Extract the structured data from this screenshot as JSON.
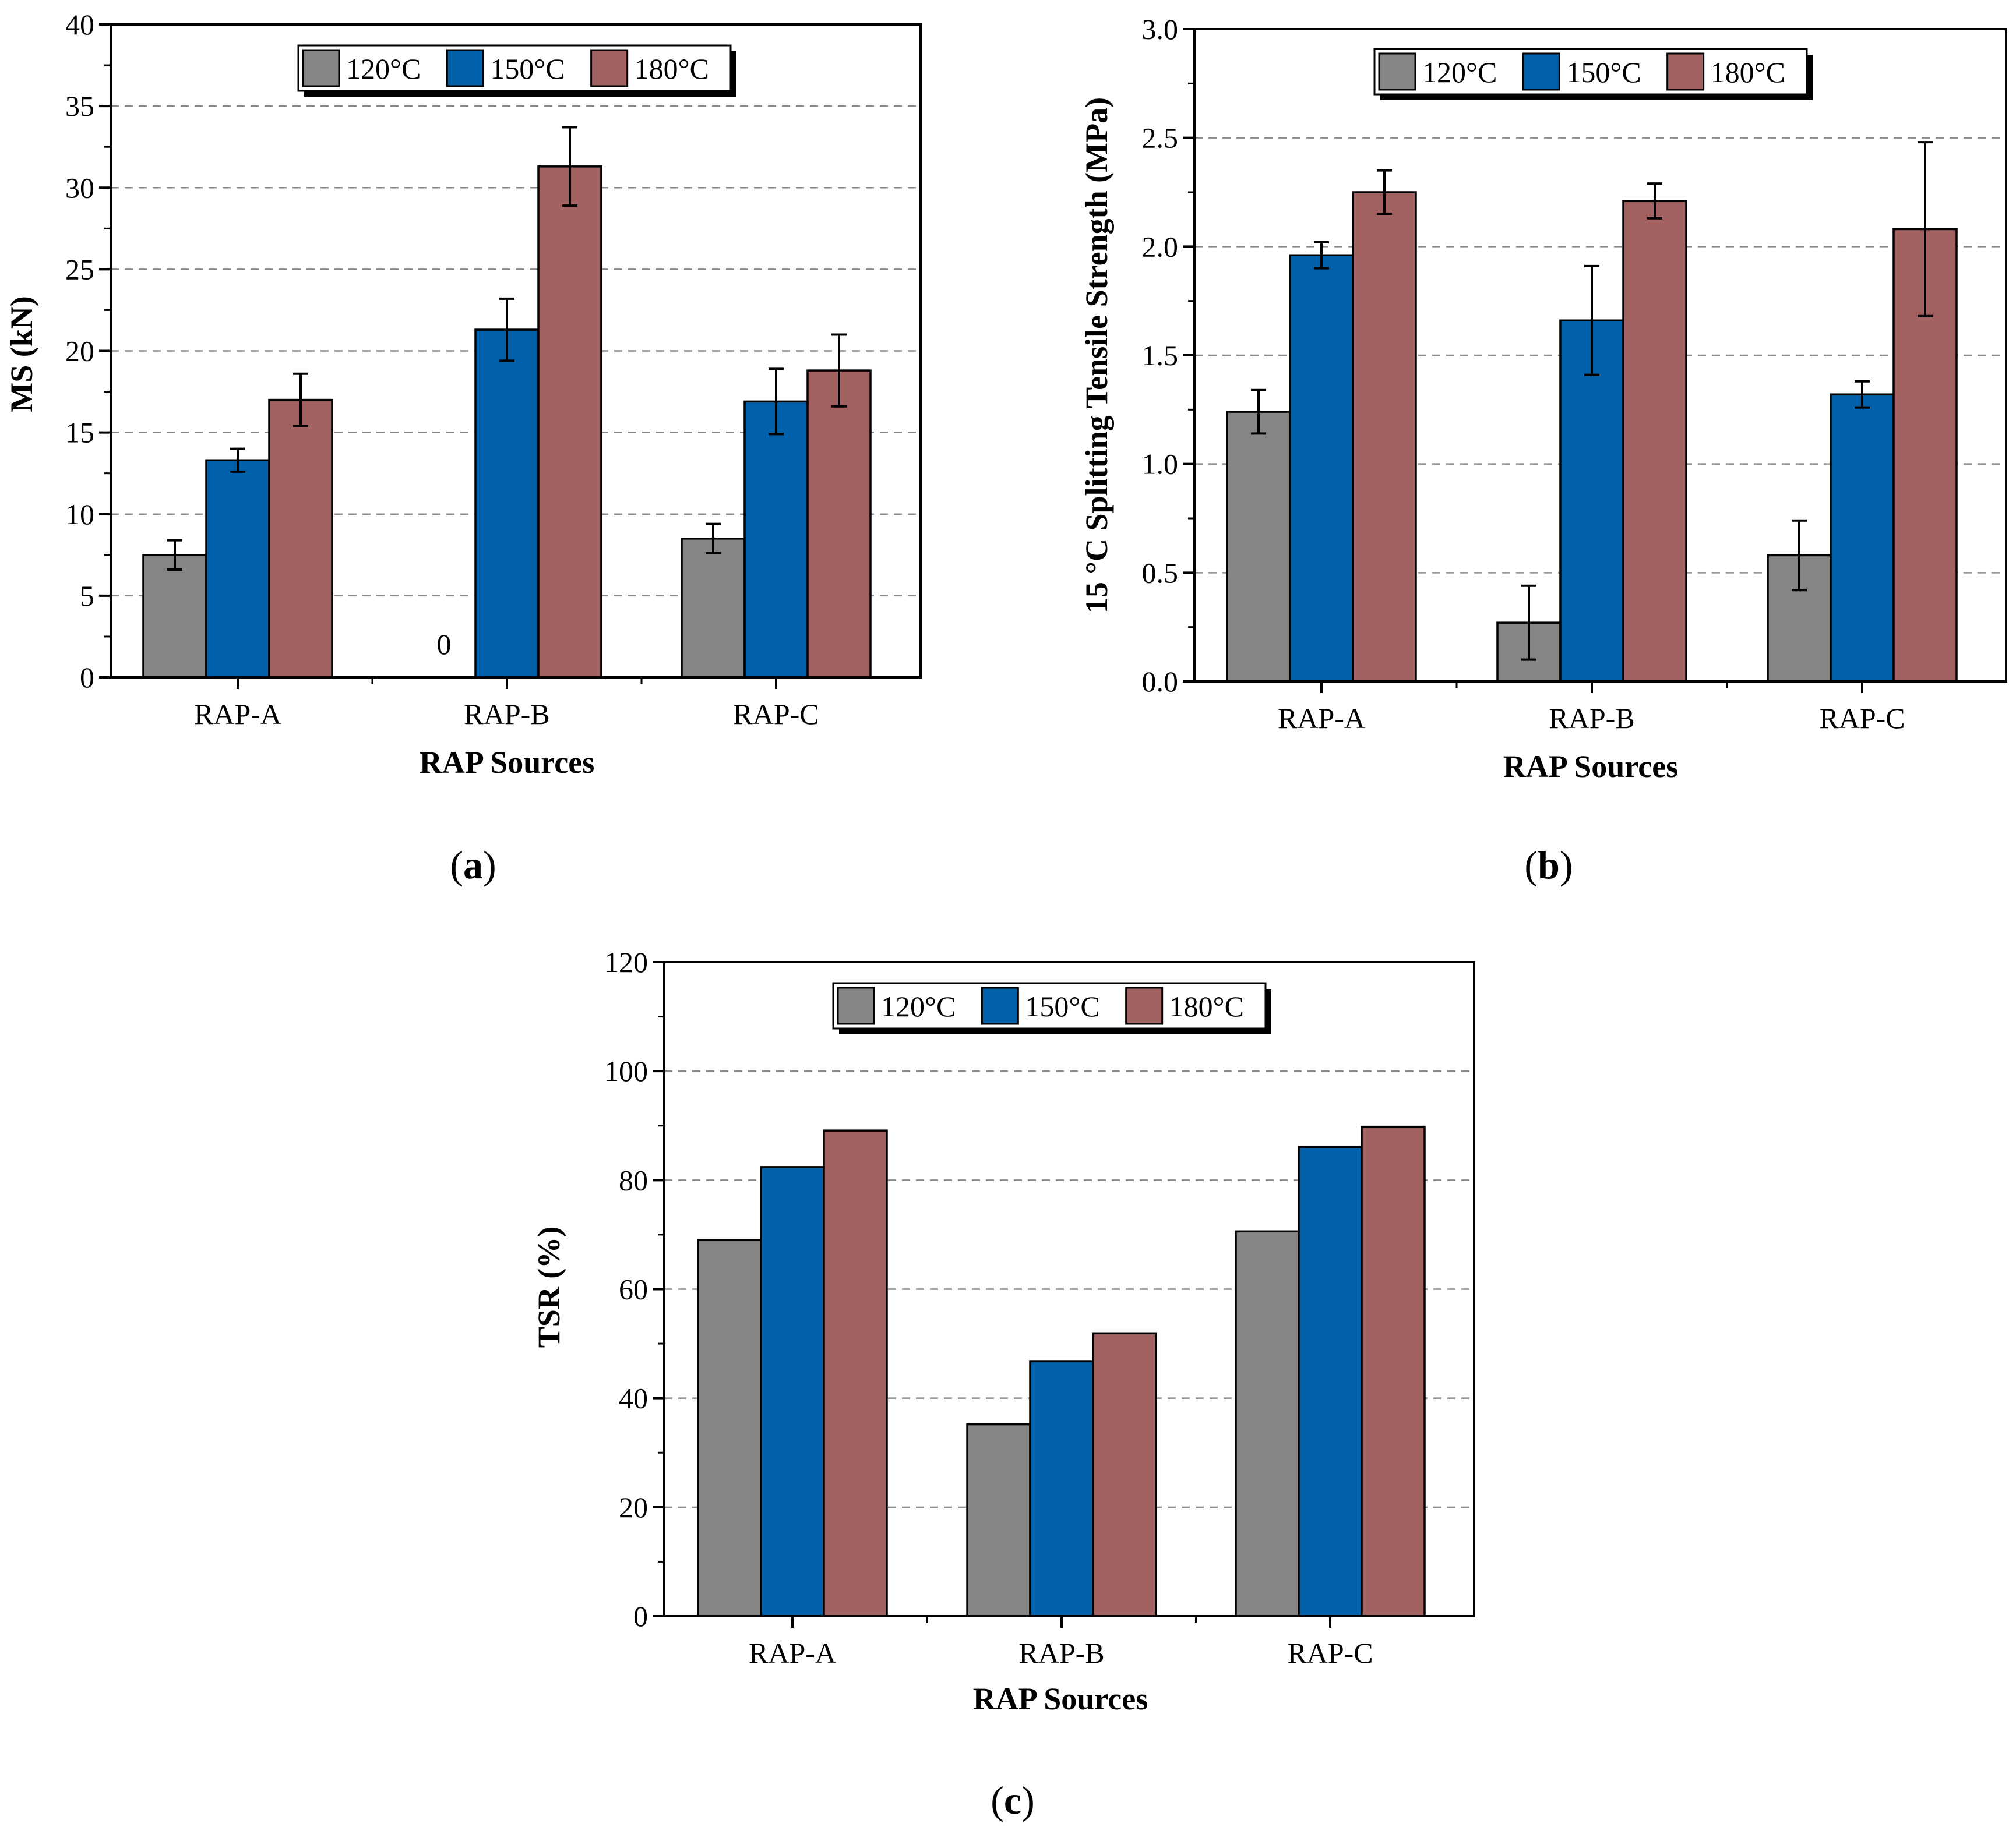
{
  "colors": {
    "s120": "#858585",
    "s150": "#0060aa",
    "s180": "#a36262"
  },
  "chart_data": [
    {
      "type": "bar",
      "panel": "(a)",
      "panel_letter": "a",
      "categories": [
        "RAP-A",
        "RAP-B",
        "RAP-C"
      ],
      "series": [
        {
          "name": "120°C",
          "values": [
            7.5,
            0,
            8.5
          ],
          "errors": [
            0.9,
            null,
            0.9
          ]
        },
        {
          "name": "150°C",
          "values": [
            13.3,
            21.3,
            16.9
          ],
          "errors": [
            0.7,
            1.9,
            2.0
          ]
        },
        {
          "name": "180°C",
          "values": [
            17.0,
            31.3,
            18.8
          ],
          "errors": [
            1.6,
            2.4,
            2.2
          ]
        }
      ],
      "ylim": [
        0,
        40
      ],
      "yticks": [
        "0",
        "5",
        "10",
        "15",
        "20",
        "25",
        "30",
        "35",
        "40"
      ],
      "ylabel": "MS (kN)",
      "xlabel": "RAP Sources",
      "grid": true,
      "legend": "top-center",
      "annotations": [
        {
          "category": "RAP-B",
          "series": "120°C",
          "text": "0"
        }
      ]
    },
    {
      "type": "bar",
      "panel": "(b)",
      "panel_letter": "b",
      "categories": [
        "RAP-A",
        "RAP-B",
        "RAP-C"
      ],
      "series": [
        {
          "name": "120°C",
          "values": [
            1.24,
            0.27,
            0.58
          ],
          "errors": [
            0.1,
            0.17,
            0.16
          ]
        },
        {
          "name": "150°C",
          "values": [
            1.96,
            1.66,
            1.32
          ],
          "errors": [
            0.06,
            0.25,
            0.06
          ]
        },
        {
          "name": "180°C",
          "values": [
            2.25,
            2.21,
            2.08
          ],
          "errors": [
            0.1,
            0.08,
            0.4
          ]
        }
      ],
      "ylim": [
        0,
        3.0
      ],
      "yticks": [
        "0.0",
        "0.5",
        "1.0",
        "1.5",
        "2.0",
        "2.5",
        "3.0"
      ],
      "ylabel": "15 °C Splitting Tensile Strength (MPa)",
      "xlabel": "RAP Sources",
      "grid": true,
      "legend": "top-center"
    },
    {
      "type": "bar",
      "panel": "(c)",
      "panel_letter": "c",
      "categories": [
        "RAP-A",
        "RAP-B",
        "RAP-C"
      ],
      "series": [
        {
          "name": "120°C",
          "values": [
            69.0,
            35.2,
            70.6
          ]
        },
        {
          "name": "150°C",
          "values": [
            82.4,
            46.8,
            86.1
          ]
        },
        {
          "name": "180°C",
          "values": [
            89.1,
            51.9,
            89.8
          ]
        }
      ],
      "ylim": [
        0,
        120
      ],
      "yticks": [
        "0",
        "20",
        "40",
        "60",
        "80",
        "100",
        "120"
      ],
      "ylabel": "TSR (%)",
      "xlabel": "RAP Sources",
      "grid": true,
      "legend": "top-center"
    }
  ]
}
